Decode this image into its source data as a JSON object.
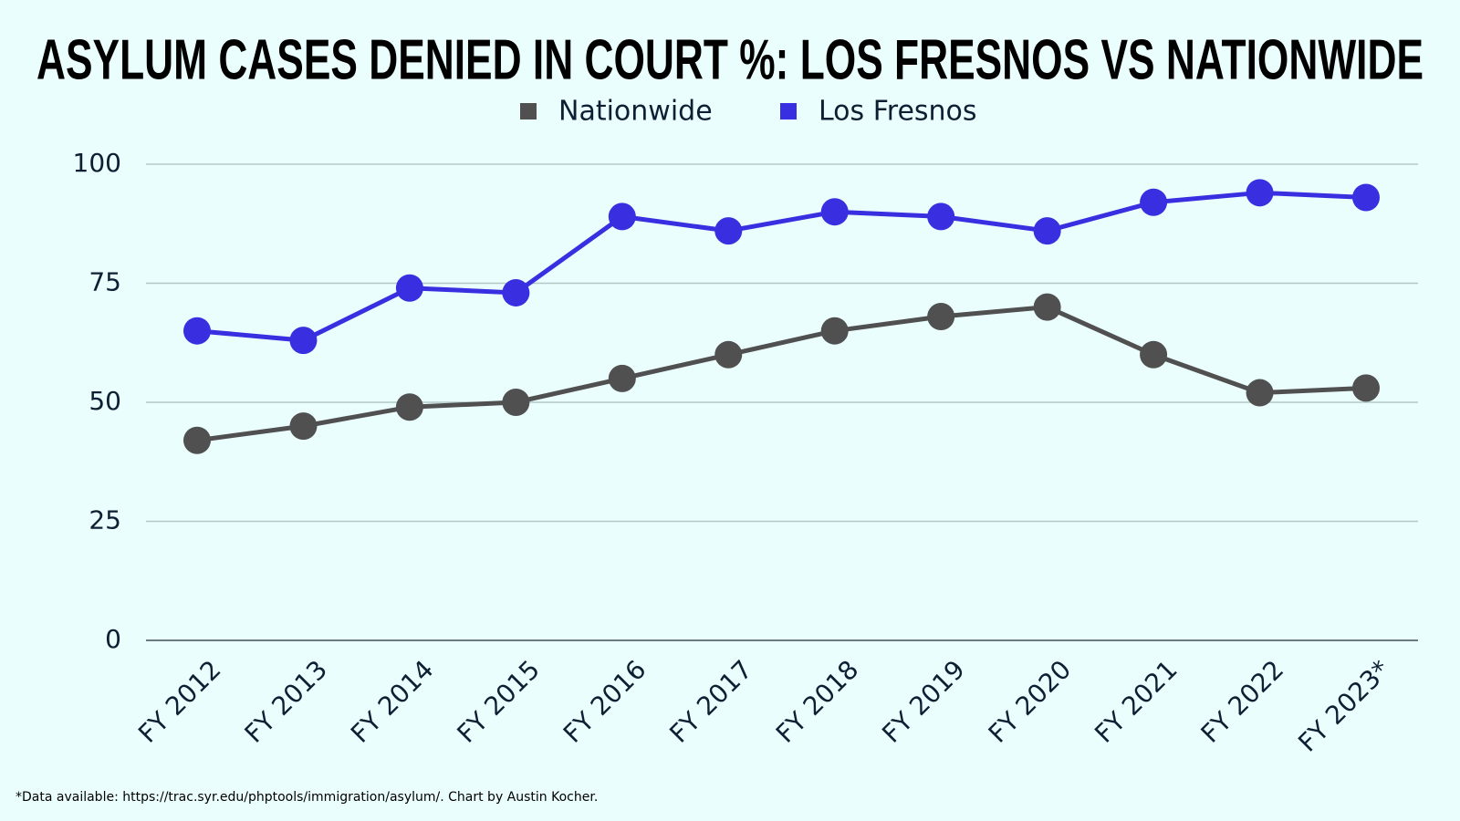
{
  "chart_data": {
    "type": "line",
    "title": "ASYLUM CASES DENIED IN COURT %: LOS FRESNOS VS NATIONWIDE",
    "categories": [
      "FY 2012",
      "FY 2013",
      "FY 2014",
      "FY 2015",
      "FY 2016",
      "FY 2017",
      "FY 2018",
      "FY 2019",
      "FY 2020",
      "FY 2021",
      "FY 2022",
      "FY 2023*"
    ],
    "series": [
      {
        "name": "Nationwide",
        "color": "#505050",
        "values": [
          42,
          45,
          49,
          50,
          55,
          60,
          65,
          68,
          70,
          60,
          52,
          53
        ]
      },
      {
        "name": "Los Fresnos",
        "color": "#3a2fe0",
        "values": [
          65,
          63,
          74,
          73,
          89,
          86,
          90,
          89,
          86,
          92,
          94,
          93
        ]
      }
    ],
    "ylim": [
      0,
      100
    ],
    "yticks": [
      0,
      25,
      50,
      75,
      100
    ],
    "grid": true,
    "legend": "top",
    "footnote": "*Data available: https://trac.syr.edu/phptools/immigration/asylum/. Chart by Austin Kocher."
  }
}
